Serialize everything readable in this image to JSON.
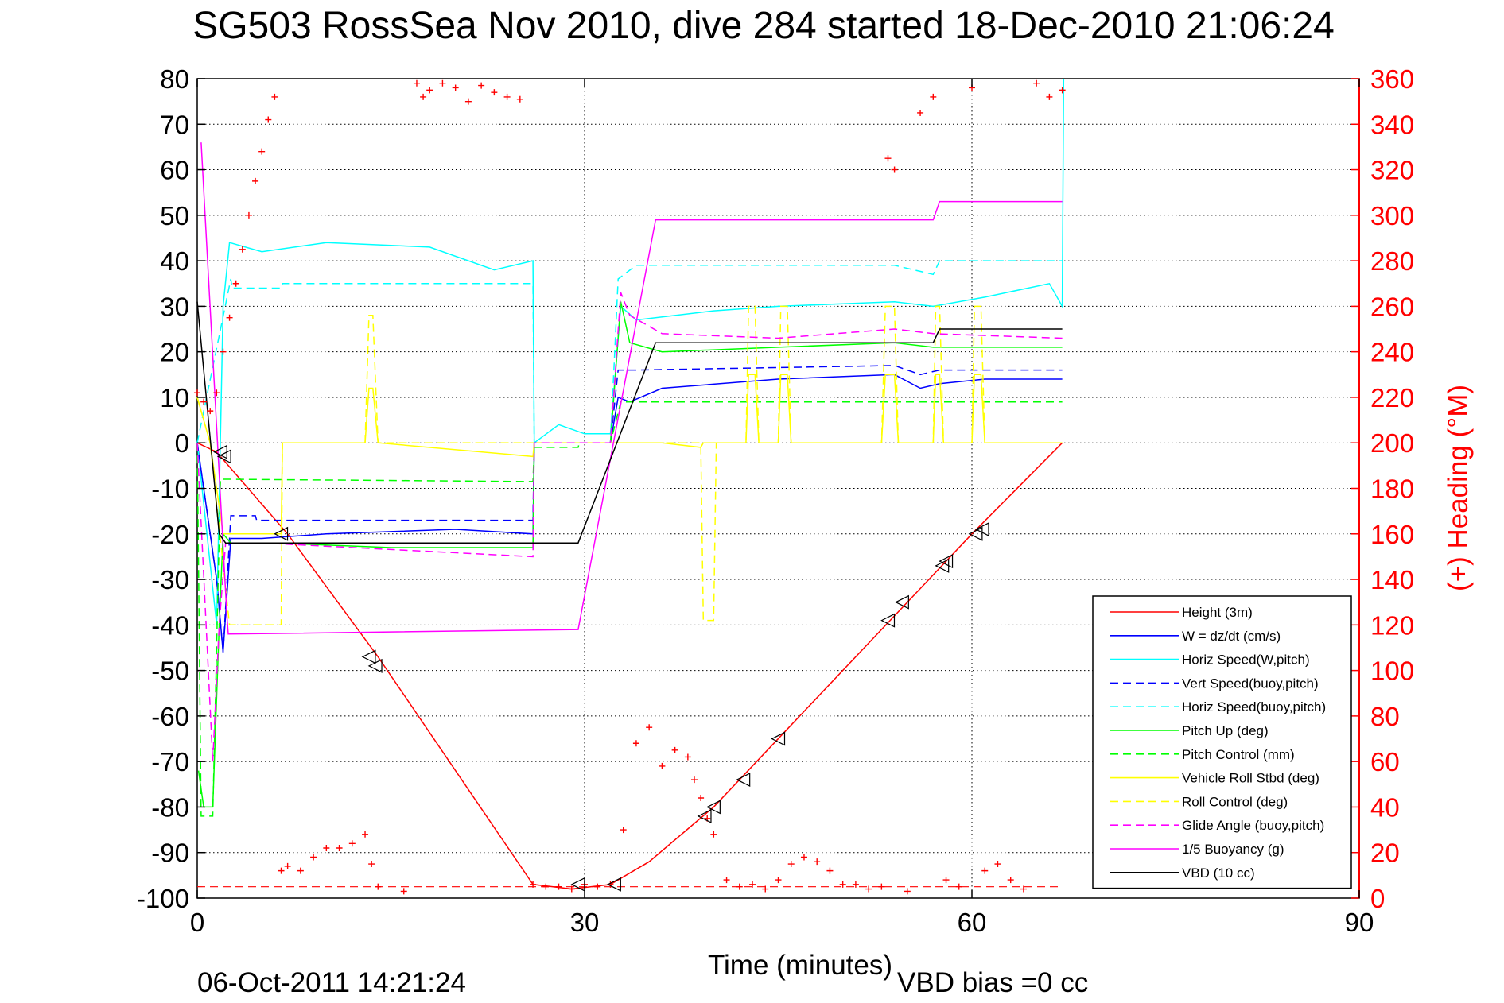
{
  "chart_data": {
    "type": "line",
    "title": "SG503 RossSea Nov 2010, dive 284 started 18-Dec-2010 21:06:24",
    "xlabel": "Time (minutes)",
    "ylabel_right": "(+) Heading (°M)",
    "footer_date": "06-Oct-2011 14:21:24",
    "footer_vbd": "VBD bias =0 cc",
    "xlim": [
      0,
      90
    ],
    "ylim": [
      -100,
      80
    ],
    "ylim_right": [
      0,
      360
    ],
    "xticks": [
      0,
      30,
      60,
      90
    ],
    "yticks": [
      80,
      70,
      60,
      50,
      40,
      30,
      20,
      10,
      0,
      -10,
      -20,
      -30,
      -40,
      -50,
      -60,
      -70,
      -80,
      -90,
      -100
    ],
    "yticks_right": [
      360,
      340,
      320,
      300,
      280,
      260,
      240,
      220,
      200,
      180,
      160,
      140,
      120,
      100,
      80,
      60,
      40,
      20,
      0
    ],
    "grid": true,
    "legend_position": "bottom-right",
    "series": [
      {
        "name": "Height (3m)",
        "color": "#ff0000",
        "dash": "solid",
        "x": [
          0,
          1.5,
          7,
          14,
          26,
          29,
          32,
          35,
          40,
          46,
          54,
          60,
          67
        ],
        "y": [
          0,
          -2,
          -20,
          -47,
          -97,
          -98,
          -97,
          -92,
          -80,
          -62,
          -38,
          -20,
          0
        ]
      },
      {
        "name": "W = dz/dt (cm/s)",
        "color": "#0000ff",
        "dash": "solid",
        "x": [
          0,
          1.5,
          2,
          2.6,
          5,
          10,
          20,
          26,
          26.1,
          32,
          32.6,
          33.5,
          36,
          45,
          54,
          56,
          57.5,
          61,
          67
        ],
        "y": [
          0,
          -30,
          -46,
          -21,
          -21,
          -20,
          -19,
          -20,
          0,
          0,
          10,
          9,
          12,
          14,
          15,
          12,
          13,
          14,
          14
        ]
      },
      {
        "name": "Horiz Speed(W,pitch)",
        "color": "#00ffff",
        "dash": "solid",
        "x": [
          0,
          1.5,
          2,
          2.5,
          5,
          10,
          18,
          23,
          26,
          26.1,
          28,
          30,
          32,
          32.8,
          34,
          40,
          45,
          54,
          57,
          61,
          66,
          67,
          67.1
        ],
        "y": [
          0,
          -40,
          30,
          44,
          42,
          44,
          43,
          38,
          40,
          0,
          4,
          2,
          2,
          30,
          27,
          29,
          30,
          31,
          30,
          32,
          35,
          30,
          80
        ]
      },
      {
        "name": "Vert Speed(buoy,pitch)",
        "color": "#0000ff",
        "dash": "dashed",
        "x": [
          0,
          1.5,
          2,
          2.6,
          4.5,
          4.6,
          26,
          26.1,
          32,
          32.6,
          34,
          54,
          56,
          57.5,
          67
        ],
        "y": [
          0,
          -30,
          -46,
          -16,
          -16,
          -17,
          -17,
          0,
          0,
          16,
          16,
          17,
          15,
          16,
          16
        ]
      },
      {
        "name": "Horiz Speed(buoy,pitch)",
        "color": "#00ffff",
        "dash": "dashed",
        "x": [
          0,
          2.6,
          2.7,
          6.5,
          6.6,
          26,
          26.1,
          32,
          32.6,
          34,
          54,
          57,
          57.5,
          67
        ],
        "y": [
          0,
          36,
          34,
          34,
          35,
          35,
          0,
          0,
          36,
          39,
          39,
          37,
          40,
          40
        ]
      },
      {
        "name": "Pitch Up (deg)",
        "color": "#00ff00",
        "dash": "solid",
        "x": [
          0.1,
          0.5,
          1.2,
          1.7,
          2,
          2.6,
          6,
          15,
          26,
          26.1,
          32,
          32.8,
          33.5,
          36,
          45,
          54,
          57,
          61,
          67
        ],
        "y": [
          -72,
          -80,
          -80,
          -40,
          -20,
          -22,
          -22,
          -23,
          -23,
          0,
          0,
          31,
          22,
          20,
          21,
          22,
          21,
          21,
          21
        ]
      },
      {
        "name": "Pitch Control (mm)",
        "color": "#00ff00",
        "dash": "dashed",
        "x": [
          0,
          0.3,
          1.2,
          1.8,
          2.2,
          26,
          26.1,
          29.5,
          29.6,
          32,
          32.8,
          67
        ],
        "y": [
          0,
          -82,
          -82,
          -8,
          -8,
          -8.5,
          -1,
          -1,
          0,
          0,
          9,
          9
        ]
      },
      {
        "name": "Vehicle Roll Stbd (deg)",
        "color": "#ffff00",
        "dash": "solid",
        "x": [
          0,
          1,
          2,
          6.5,
          6.6,
          13,
          13.3,
          13.6,
          14,
          26,
          26.1,
          32,
          36,
          39,
          39.2,
          40,
          42.5,
          42.7,
          43.2,
          43.5,
          45,
          45.2,
          45.7,
          46,
          53,
          53.3,
          54,
          54.3,
          57,
          57.2,
          57.5,
          57.8,
          60,
          60.2,
          60.7,
          61,
          67
        ],
        "y": [
          10,
          0,
          -20,
          -20,
          0,
          0,
          12,
          12,
          0,
          -3,
          0,
          0,
          0,
          -1,
          0,
          0,
          0,
          15,
          15,
          0,
          0,
          15,
          15,
          0,
          0,
          15,
          15,
          0,
          0,
          15,
          15,
          0,
          0,
          15,
          15,
          0,
          0
        ]
      },
      {
        "name": "Roll Control (deg)",
        "color": "#ffff00",
        "dash": "dashed",
        "x": [
          0,
          1,
          2.5,
          6.5,
          6.6,
          13,
          13.3,
          13.6,
          14,
          26,
          26.1,
          32,
          39,
          39.2,
          40,
          40.2,
          42.5,
          42.7,
          43.2,
          43.5,
          45,
          45.2,
          45.7,
          46,
          53,
          53.3,
          54,
          54.3,
          57,
          57.2,
          57.5,
          57.8,
          60,
          60.2,
          60.7,
          61,
          67
        ],
        "y": [
          10,
          0,
          -40,
          -40,
          0,
          0,
          28,
          28,
          0,
          0,
          0,
          0,
          0,
          -39,
          -39,
          0,
          0,
          30,
          30,
          0,
          0,
          30,
          30,
          0,
          0,
          30,
          30,
          0,
          0,
          30,
          30,
          0,
          0,
          30,
          30,
          0,
          0
        ]
      },
      {
        "name": "Glide Angle (buoy,pitch)",
        "color": "#ff00ff",
        "dash": "dashed",
        "x": [
          0,
          1.2,
          1.7,
          2.2,
          5,
          26,
          26.1,
          32,
          32.8,
          33.5,
          36,
          45,
          54,
          57,
          67
        ],
        "y": [
          0,
          -70,
          -40,
          -22,
          -22,
          -25,
          0,
          0,
          33,
          28,
          24,
          23,
          25,
          24,
          23
        ]
      },
      {
        "name": "1/5 Buoyancy (g)",
        "color": "#ff00ff",
        "dash": "solid",
        "x": [
          0.3,
          2.3,
          2.4,
          29.5,
          35.5,
          57,
          57.5,
          67
        ],
        "y": [
          66,
          -38,
          -42,
          -41,
          49,
          49,
          53,
          53
        ]
      },
      {
        "name": "VBD (10 cc)",
        "color": "#000000",
        "dash": "solid",
        "x": [
          0,
          1.7,
          2.2,
          26,
          29.5,
          35.5,
          57,
          57.5,
          67
        ],
        "y": [
          31,
          -20,
          -22,
          -22,
          -22,
          22,
          22,
          25,
          25
        ]
      }
    ],
    "heading_points": {
      "name": "(+) Heading (°M)",
      "color": "#ff0000",
      "marker": "+",
      "x": [
        0,
        0.5,
        1,
        1.5,
        2,
        2.5,
        3,
        3.5,
        4,
        4.5,
        5,
        5.5,
        6,
        6.5,
        7,
        8,
        9,
        10,
        11,
        12,
        13,
        13.5,
        14,
        16,
        17,
        17.5,
        18,
        19,
        20,
        21,
        22,
        23,
        24,
        25,
        26,
        27,
        28,
        29,
        30,
        31,
        32,
        33,
        34,
        35,
        36,
        37,
        38,
        38.5,
        39,
        39.5,
        40,
        41,
        42,
        43,
        44,
        45,
        46,
        47,
        48,
        49,
        50,
        51,
        52,
        53,
        53.5,
        54,
        55,
        56,
        57,
        58,
        59,
        60,
        61,
        62,
        63,
        64,
        65,
        66,
        67
      ],
      "y": [
        222,
        218,
        214,
        222,
        240,
        255,
        270,
        285,
        300,
        315,
        328,
        342,
        352,
        12,
        14,
        12,
        18,
        22,
        22,
        24,
        28,
        15,
        5,
        3,
        358,
        352,
        355,
        358,
        356,
        350,
        357,
        354,
        352,
        351,
        6,
        5,
        5,
        4,
        6,
        5,
        6,
        30,
        68,
        75,
        58,
        65,
        62,
        52,
        44,
        35,
        28,
        8,
        5,
        6,
        4,
        8,
        15,
        18,
        16,
        12,
        6,
        6,
        4,
        5,
        325,
        320,
        3,
        345,
        352,
        8,
        5,
        356,
        12,
        15,
        8,
        4,
        358,
        352,
        355
      ]
    },
    "markers": {
      "shape": "triangle",
      "color": "#000000",
      "x": [
        1.8,
        2.1,
        6.5,
        13.3,
        13.8,
        29.5,
        32.3,
        39.3,
        40,
        42.3,
        45,
        53.5,
        54.6,
        57.7,
        58,
        60.3,
        60.8
      ],
      "y": [
        -2,
        -3,
        -20,
        -47,
        -49,
        -97,
        -97,
        -82,
        -80,
        -74,
        -65,
        -39,
        -35,
        -27,
        -26,
        -20,
        -19
      ]
    }
  }
}
